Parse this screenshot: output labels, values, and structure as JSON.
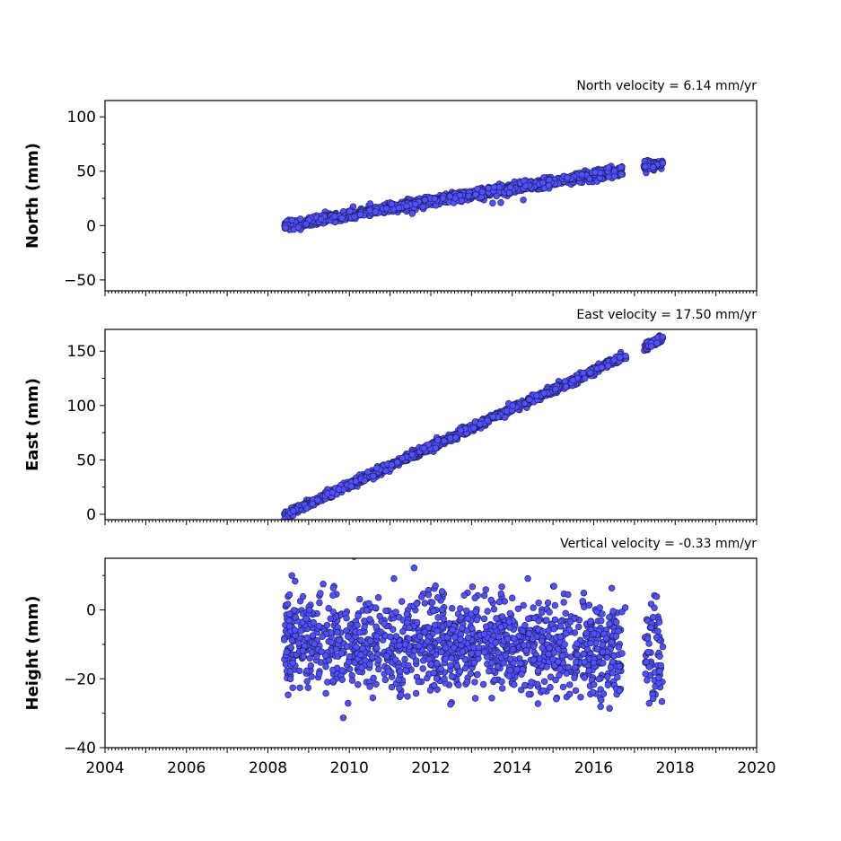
{
  "chart_data": [
    {
      "type": "scatter",
      "title": "North velocity = 6.14 mm/yr",
      "ylabel": "North (mm)",
      "xlim": [
        2004,
        2020
      ],
      "ylim": [
        -60,
        115
      ],
      "yticks": [
        -50,
        0,
        50,
        100
      ],
      "ytick_labels": [
        "−50",
        "0",
        "50",
        "100"
      ],
      "series": [
        {
          "x_range": [
            2008.4,
            2017.7
          ],
          "trend_mm_per_yr": 6.14,
          "start_value": 0,
          "scatter_mm": 2.2,
          "gaps": [
            [
              2016.8,
              2017.2
            ]
          ]
        }
      ]
    },
    {
      "type": "scatter",
      "title": "East velocity = 17.50 mm/yr",
      "ylabel": "East (mm)",
      "xlim": [
        2004,
        2020
      ],
      "ylim": [
        -5,
        170
      ],
      "yticks": [
        0,
        50,
        100,
        150
      ],
      "ytick_labels": [
        "0",
        "50",
        "100",
        "150"
      ],
      "series": [
        {
          "x_range": [
            2008.4,
            2017.7
          ],
          "trend_mm_per_yr": 17.5,
          "start_value": -1,
          "scatter_mm": 1.8,
          "gaps": [
            [
              2016.8,
              2017.2
            ]
          ]
        }
      ]
    },
    {
      "type": "scatter",
      "title": "Vertical velocity = -0.33 mm/yr",
      "ylabel": "Height (mm)",
      "xlim": [
        2004,
        2020
      ],
      "ylim": [
        -40,
        15
      ],
      "yticks": [
        -40,
        -20,
        0
      ],
      "ytick_labels": [
        "−40",
        "−20",
        "0"
      ],
      "series": [
        {
          "x_range": [
            2008.4,
            2017.7
          ],
          "trend_mm_per_yr": -0.33,
          "start_value": -9,
          "scatter_mm": 7,
          "gaps": [
            [
              2016.8,
              2017.2
            ]
          ]
        }
      ]
    }
  ],
  "xticks": [
    2004,
    2006,
    2008,
    2010,
    2012,
    2014,
    2016,
    2018,
    2020
  ],
  "xtick_labels": [
    "2004",
    "2006",
    "2008",
    "2010",
    "2012",
    "2014",
    "2016",
    "2018",
    "2020"
  ],
  "point_color": "#5050ff",
  "point_edge_color": "#1a1a4a"
}
